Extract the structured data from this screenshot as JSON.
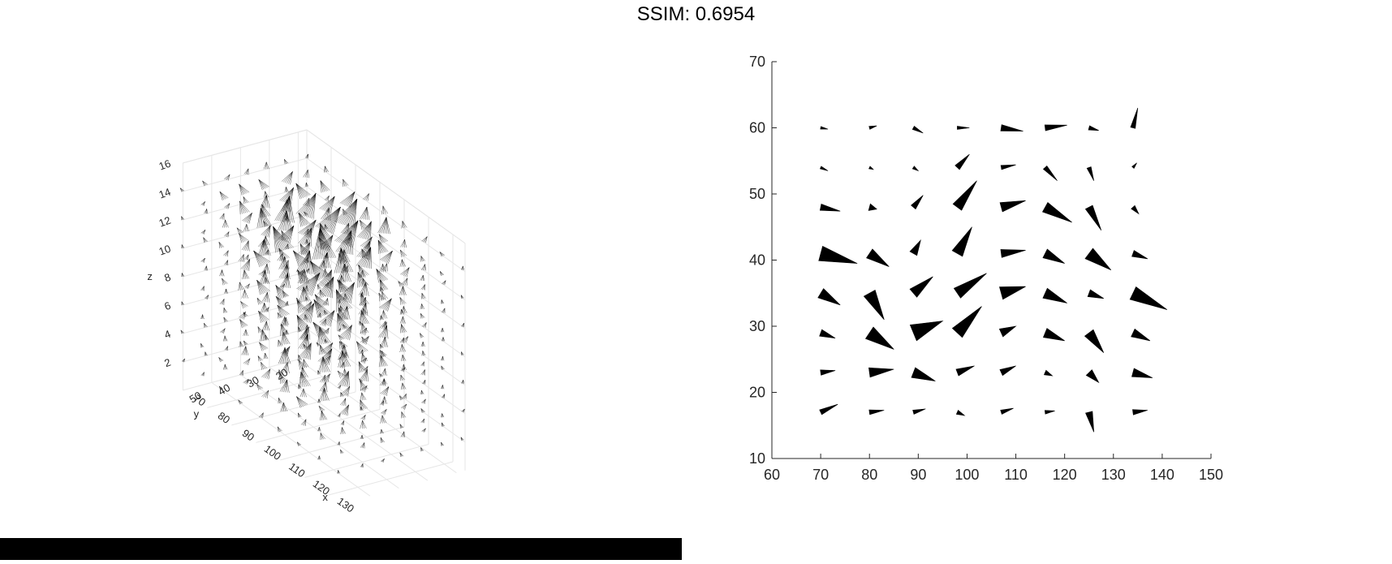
{
  "figure": {
    "title": "SSIM: 0.6954"
  },
  "chart_data": [
    {
      "type": "scatter",
      "subtype": "3d-cone-field",
      "xlabel": "x",
      "ylabel": "y",
      "zlabel": "z",
      "xticks": [
        70,
        80,
        90,
        100,
        110,
        120,
        130
      ],
      "yticks": [
        20,
        30,
        40,
        50
      ],
      "zticks": [
        2,
        4,
        6,
        8,
        10,
        12,
        14,
        16
      ],
      "xlim": [
        70,
        135
      ],
      "ylim": [
        17,
        60
      ],
      "zlim": [
        0,
        16
      ],
      "grid": true,
      "marker": "wireframe cones",
      "color": "#000000"
    },
    {
      "type": "scatter",
      "subtype": "2d-cone-projection",
      "xlim": [
        60,
        150
      ],
      "ylim": [
        10,
        70
      ],
      "xticks": [
        60,
        70,
        80,
        90,
        100,
        110,
        120,
        130,
        140,
        150
      ],
      "yticks": [
        10,
        20,
        30,
        40,
        50,
        60,
        70
      ],
      "grid": false,
      "color": "#000000",
      "x_grid": [
        70,
        80,
        89,
        98,
        107,
        116,
        125,
        134
      ],
      "y_grid": [
        60,
        54,
        48,
        41,
        35,
        29,
        23,
        17
      ],
      "cones": [
        {
          "x": 70,
          "y": 60,
          "dx": 1.5,
          "dy": -0.2,
          "w": 0.5
        },
        {
          "x": 80,
          "y": 60,
          "dx": 1.5,
          "dy": 0.3,
          "w": 0.6
        },
        {
          "x": 89,
          "y": 60,
          "dx": 2,
          "dy": -0.8,
          "w": 0.7
        },
        {
          "x": 98,
          "y": 60,
          "dx": 2.5,
          "dy": 0,
          "w": 0.6
        },
        {
          "x": 107,
          "y": 60,
          "dx": 4.5,
          "dy": -0.5,
          "w": 1.2
        },
        {
          "x": 116,
          "y": 60,
          "dx": 4.5,
          "dy": 0.4,
          "w": 1.1
        },
        {
          "x": 125,
          "y": 60,
          "dx": 2,
          "dy": -0.4,
          "w": 0.8
        },
        {
          "x": 134,
          "y": 60,
          "dx": 1,
          "dy": 3,
          "w": 0.9
        },
        {
          "x": 70,
          "y": 54,
          "dx": 1.5,
          "dy": -0.5,
          "w": 0.5
        },
        {
          "x": 80,
          "y": 54,
          "dx": 0.8,
          "dy": -0.3,
          "w": 0.5
        },
        {
          "x": 89,
          "y": 54,
          "dx": 1,
          "dy": -0.5,
          "w": 0.6
        },
        {
          "x": 98,
          "y": 54,
          "dx": 2.5,
          "dy": 2,
          "w": 1.1
        },
        {
          "x": 107,
          "y": 54,
          "dx": 3,
          "dy": 0.4,
          "w": 0.8
        },
        {
          "x": 116,
          "y": 54,
          "dx": 2.5,
          "dy": -2,
          "w": 0.9
        },
        {
          "x": 125,
          "y": 54,
          "dx": 1,
          "dy": -2,
          "w": 0.8
        },
        {
          "x": 134,
          "y": 54,
          "dx": 0.8,
          "dy": 0.7,
          "w": 0.5
        },
        {
          "x": 70,
          "y": 48,
          "dx": 4,
          "dy": -0.6,
          "w": 1.2
        },
        {
          "x": 80,
          "y": 48,
          "dx": 1.5,
          "dy": -0.3,
          "w": 1.3
        },
        {
          "x": 89,
          "y": 48,
          "dx": 2,
          "dy": 1.8,
          "w": 1.1
        },
        {
          "x": 98,
          "y": 48,
          "dx": 4,
          "dy": 4,
          "w": 2
        },
        {
          "x": 107,
          "y": 48,
          "dx": 5,
          "dy": 1,
          "w": 1.8
        },
        {
          "x": 116,
          "y": 48,
          "dx": 5.5,
          "dy": -2.3,
          "w": 2
        },
        {
          "x": 125,
          "y": 48,
          "dx": 2.5,
          "dy": -3.5,
          "w": 1.5
        },
        {
          "x": 134,
          "y": 48,
          "dx": 1.2,
          "dy": -1,
          "w": 0.9
        },
        {
          "x": 70,
          "y": 41,
          "dx": 7.5,
          "dy": -1.5,
          "w": 2.8
        },
        {
          "x": 80,
          "y": 41,
          "dx": 4,
          "dy": -2,
          "w": 2
        },
        {
          "x": 89,
          "y": 41,
          "dx": 1.5,
          "dy": 2,
          "w": 1.5
        },
        {
          "x": 98,
          "y": 41,
          "dx": 3,
          "dy": 4,
          "w": 2.2
        },
        {
          "x": 107,
          "y": 41,
          "dx": 5,
          "dy": 0.5,
          "w": 1.5
        },
        {
          "x": 116,
          "y": 41,
          "dx": 4,
          "dy": -1.5,
          "w": 1.8
        },
        {
          "x": 125,
          "y": 41,
          "dx": 4.5,
          "dy": -2.5,
          "w": 2.4
        },
        {
          "x": 134,
          "y": 41,
          "dx": 3,
          "dy": -0.8,
          "w": 1.2
        },
        {
          "x": 70,
          "y": 35,
          "dx": 4,
          "dy": -1.8,
          "w": 2
        },
        {
          "x": 80,
          "y": 35,
          "dx": 3,
          "dy": -4,
          "w": 2.4
        },
        {
          "x": 89,
          "y": 35,
          "dx": 4,
          "dy": 2.5,
          "w": 2
        },
        {
          "x": 98,
          "y": 35,
          "dx": 6,
          "dy": 3,
          "w": 2.2
        },
        {
          "x": 107,
          "y": 35,
          "dx": 5,
          "dy": 1,
          "w": 2.4
        },
        {
          "x": 116,
          "y": 35,
          "dx": 4.5,
          "dy": -1.5,
          "w": 2
        },
        {
          "x": 125,
          "y": 35,
          "dx": 3,
          "dy": -0.8,
          "w": 1.4
        },
        {
          "x": 134,
          "y": 35,
          "dx": 7,
          "dy": -2.5,
          "w": 2.6
        },
        {
          "x": 70,
          "y": 29,
          "dx": 3,
          "dy": -0.8,
          "w": 1.3
        },
        {
          "x": 80,
          "y": 29,
          "dx": 5,
          "dy": -2.5,
          "w": 2.6
        },
        {
          "x": 89,
          "y": 29,
          "dx": 6,
          "dy": 1.8,
          "w": 3.2
        },
        {
          "x": 98,
          "y": 29,
          "dx": 5,
          "dy": 4,
          "w": 2.5
        },
        {
          "x": 107,
          "y": 29,
          "dx": 3,
          "dy": 1,
          "w": 1.6
        },
        {
          "x": 116,
          "y": 29,
          "dx": 4,
          "dy": -1.2,
          "w": 1.8
        },
        {
          "x": 125,
          "y": 29,
          "dx": 3,
          "dy": -3,
          "w": 2
        },
        {
          "x": 134,
          "y": 29,
          "dx": 3.5,
          "dy": -1.2,
          "w": 1.6
        },
        {
          "x": 70,
          "y": 23,
          "dx": 3,
          "dy": 0.3,
          "w": 1
        },
        {
          "x": 80,
          "y": 23,
          "dx": 5,
          "dy": 0.5,
          "w": 1.8
        },
        {
          "x": 89,
          "y": 23,
          "dx": 4.5,
          "dy": -1.3,
          "w": 2
        },
        {
          "x": 98,
          "y": 23,
          "dx": 3.5,
          "dy": 1,
          "w": 1.3
        },
        {
          "x": 107,
          "y": 23,
          "dx": 3,
          "dy": 1,
          "w": 1.2
        },
        {
          "x": 116,
          "y": 23,
          "dx": 1.5,
          "dy": -0.5,
          "w": 0.9
        },
        {
          "x": 125,
          "y": 23,
          "dx": 2,
          "dy": -1.5,
          "w": 1.5
        },
        {
          "x": 134,
          "y": 23,
          "dx": 4,
          "dy": -0.8,
          "w": 1.6
        },
        {
          "x": 70,
          "y": 17,
          "dx": 3.5,
          "dy": 1.2,
          "w": 1
        },
        {
          "x": 80,
          "y": 17,
          "dx": 3,
          "dy": 0.3,
          "w": 0.9
        },
        {
          "x": 89,
          "y": 17,
          "dx": 2.5,
          "dy": 0.5,
          "w": 0.8
        },
        {
          "x": 98,
          "y": 17,
          "dx": 1.5,
          "dy": -0.5,
          "w": 0.8
        },
        {
          "x": 107,
          "y": 17,
          "dx": 2.5,
          "dy": 0.6,
          "w": 0.8
        },
        {
          "x": 116,
          "y": 17,
          "dx": 2,
          "dy": 0.2,
          "w": 0.7
        },
        {
          "x": 125,
          "y": 17,
          "dx": 1,
          "dy": -3,
          "w": 1.3
        },
        {
          "x": 134,
          "y": 17,
          "dx": 3,
          "dy": 0.3,
          "w": 1
        }
      ]
    }
  ]
}
